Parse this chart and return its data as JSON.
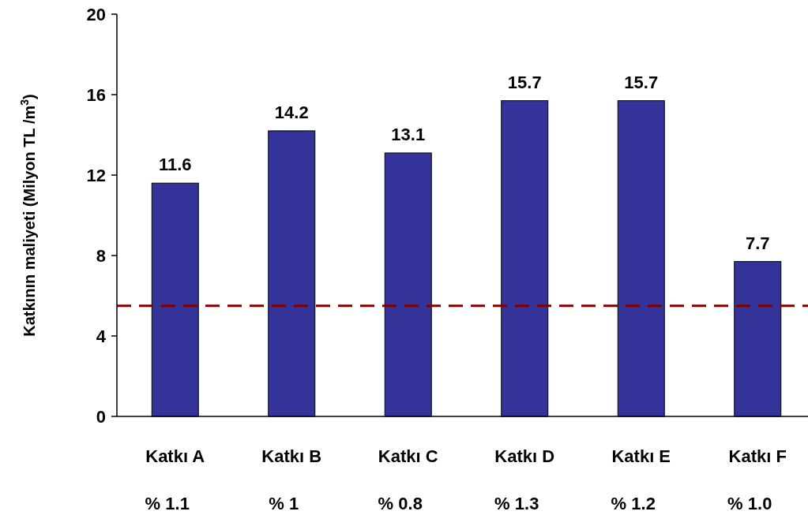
{
  "chart_data": {
    "type": "bar",
    "ylabel": "Katkının  maliyeti (Milyon TL /m$^{3}$)",
    "categories": [
      "Katkı A\n% 1.1",
      "Katkı B\n% 1",
      "Katkı C\n% 0.8",
      "Katkı D\n% 1.3",
      "Katkı E\n% 1.2",
      "Katkı F\n% 1.0"
    ],
    "values": [
      11.6,
      14.2,
      13.1,
      15.7,
      15.7,
      7.7
    ],
    "color": "#333399",
    "ylim": [
      0,
      20
    ],
    "yticks": [
      0,
      4,
      8,
      12,
      16,
      20
    ],
    "grid": false,
    "data_labels": true,
    "ref_lines": [
      {
        "axis": "y",
        "value": 5.5,
        "color": "#800000",
        "line_style": "dashed"
      }
    ]
  }
}
